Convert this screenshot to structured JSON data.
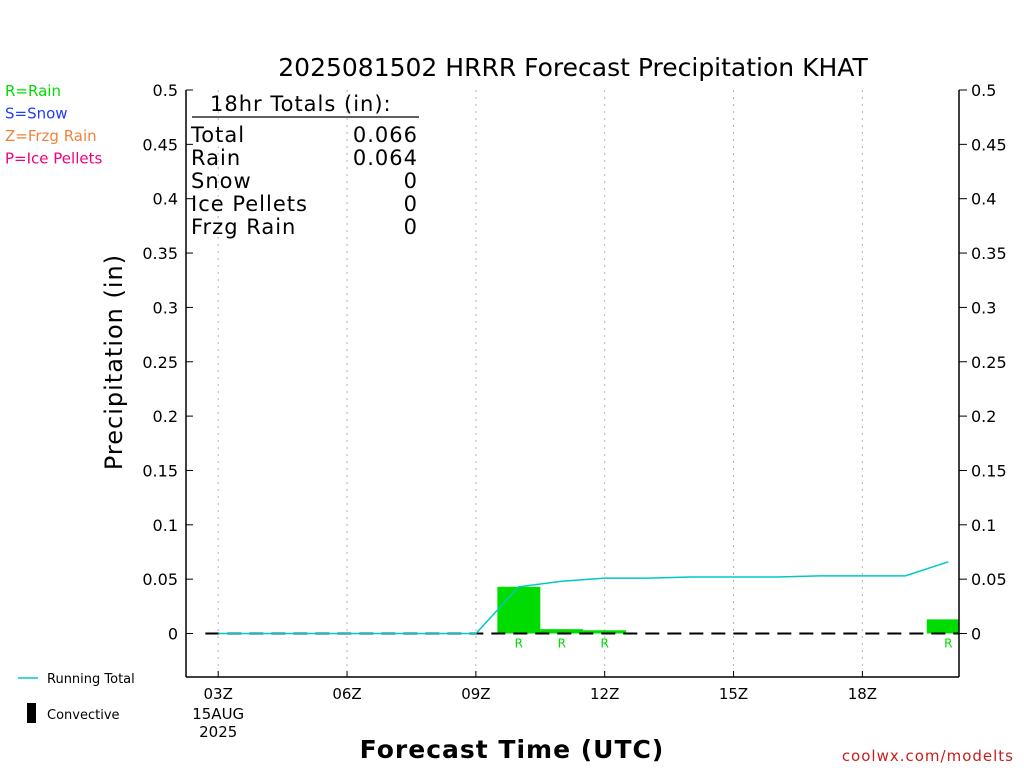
{
  "title": "2025081502 HRRR Forecast Precipitation KHAT",
  "legend_types": [
    {
      "label": "R=Rain",
      "color": "#00dc00"
    },
    {
      "label": "S=Snow",
      "color": "#1e3cff"
    },
    {
      "label": "Z=Frzg Rain",
      "color": "#f0823c"
    },
    {
      "label": "P=Ice Pellets",
      "color": "#f00082"
    }
  ],
  "totals": {
    "heading": "18hr Totals (in):",
    "rows": [
      {
        "label": "Total",
        "value": "0.066"
      },
      {
        "label": "Rain",
        "value": "0.064"
      },
      {
        "label": "Snow",
        "value": "0"
      },
      {
        "label": "Ice Pellets",
        "value": "0"
      },
      {
        "label": "Frzg Rain",
        "value": "0"
      }
    ]
  },
  "bottom_legend": {
    "running_total": "Running Total",
    "convective": "Convective"
  },
  "credit": "coolwx.com/modelts",
  "colors": {
    "bar": "#00dc00",
    "running_total": "#00c8c8",
    "axis": "#000000",
    "grid": "#b4b4b4",
    "title": "#000000",
    "credit": "#c81e1e"
  },
  "chart_data": {
    "type": "bar",
    "title": "2025081502 HRRR Forecast Precipitation KHAT",
    "xlabel": "Forecast Time (UTC)",
    "ylabel": "Precipitation (in)",
    "ylim": [
      -0.04,
      0.5
    ],
    "yticks": [
      0,
      0.05,
      0.1,
      0.15,
      0.2,
      0.25,
      0.3,
      0.35,
      0.4,
      0.45,
      0.5
    ],
    "ytick_labels": [
      "0",
      "0.05",
      "0.1",
      "0.15",
      "0.2",
      "0.25",
      "0.3",
      "0.35",
      "0.4",
      "0.45",
      "0.5"
    ],
    "xlim_hours_utc": [
      2.25,
      20.25
    ],
    "xticks": [
      {
        "hour": 3,
        "label": "03Z",
        "sublabels": [
          "15AUG",
          "2025"
        ]
      },
      {
        "hour": 6,
        "label": "06Z",
        "sublabels": []
      },
      {
        "hour": 9,
        "label": "09Z",
        "sublabels": []
      },
      {
        "hour": 12,
        "label": "12Z",
        "sublabels": []
      },
      {
        "hour": 15,
        "label": "15Z",
        "sublabels": []
      },
      {
        "hour": 18,
        "label": "18Z",
        "sublabels": []
      }
    ],
    "grid": "vertical dotted",
    "hourly_precip": [
      {
        "hour_utc": 10,
        "value": 0.043,
        "type": "R"
      },
      {
        "hour_utc": 11,
        "value": 0.004,
        "type": "R"
      },
      {
        "hour_utc": 12,
        "value": 0.003,
        "type": "R"
      },
      {
        "hour_utc": 20,
        "value": 0.013,
        "type": "R"
      }
    ],
    "running_total": {
      "name": "Running Total",
      "points": [
        [
          3,
          0
        ],
        [
          9,
          0
        ],
        [
          10,
          0.043
        ],
        [
          11,
          0.048
        ],
        [
          12,
          0.051
        ],
        [
          13,
          0.051
        ],
        [
          14,
          0.052
        ],
        [
          15,
          0.052
        ],
        [
          16,
          0.052
        ],
        [
          17,
          0.053
        ],
        [
          18,
          0.053
        ],
        [
          19,
          0.053
        ],
        [
          20,
          0.066
        ]
      ]
    }
  }
}
